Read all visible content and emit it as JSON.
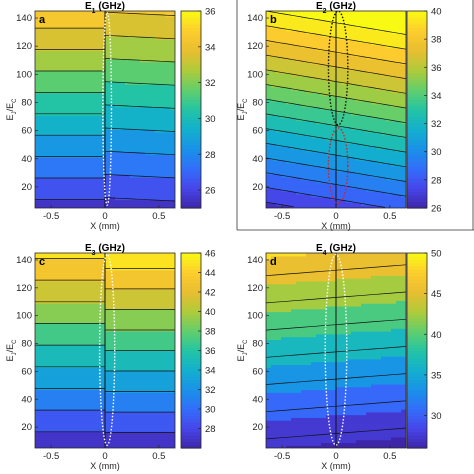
{
  "figure": {
    "panel_titles": [
      "E1 (GHz)",
      "E2 (GHz)",
      "E3 (GHz)",
      "E4 (GHz)"
    ],
    "xlabel": "X (mm)",
    "ylabel": "Ej/Ec"
  },
  "chart_data": [
    {
      "type": "heatmap",
      "panel": "a",
      "title": {
        "base": "E",
        "sub": "1",
        "unit": " (GHz)"
      },
      "xlabel": "X (mm)",
      "ylabel": {
        "base": "E",
        "sub1": "J",
        "mid": "/E",
        "sub2": "C"
      },
      "xlim": [
        -0.65,
        0.65
      ],
      "ylim": [
        5,
        145
      ],
      "xticks": [
        -0.5,
        0,
        0.5
      ],
      "yticks": [
        20,
        40,
        60,
        80,
        100,
        120,
        140
      ],
      "colorbar": {
        "min": 25,
        "max": 36,
        "ticks": [
          26,
          28,
          30,
          32,
          34,
          36
        ]
      },
      "left_region": {
        "y": [
          5,
          145
        ],
        "values": [
          25.6,
          34.8
        ],
        "tilt": 0
      },
      "right_region": {
        "y": [
          5,
          145
        ],
        "values": [
          25.4,
          33.9
        ],
        "tilt": 0.3
      },
      "contour_interval": 1,
      "boundary": {
        "color": "white",
        "style": "dotted",
        "x_center": 0.02,
        "width": 0.04
      }
    },
    {
      "type": "heatmap",
      "panel": "b",
      "title": {
        "base": "E",
        "sub": "2",
        "unit": " (GHz)"
      },
      "xlabel": "X (mm)",
      "ylabel": {
        "base": "E",
        "sub1": "J",
        "mid": "/E",
        "sub2": "C"
      },
      "xlim": [
        -0.65,
        0.65
      ],
      "ylim": [
        5,
        145
      ],
      "xticks": [
        -0.5,
        0,
        0.5
      ],
      "yticks": [
        20,
        40,
        60,
        80,
        100,
        120,
        140
      ],
      "colorbar": {
        "min": 26,
        "max": 40,
        "ticks": [
          26,
          28,
          30,
          32,
          34,
          36,
          38,
          40
        ]
      },
      "left_region": {
        "y": [
          5,
          145
        ],
        "values": [
          26.6,
          40
        ],
        "tilt": 1.6
      },
      "right_region": {
        "y": [
          5,
          145
        ],
        "values": [
          26.6,
          40
        ],
        "tilt": 1.6
      },
      "contour_interval": 1,
      "boundaries": [
        {
          "color": "black",
          "style": "dotted",
          "x_center": 0.02,
          "y": [
            64,
            145
          ],
          "width": 0.09
        },
        {
          "color": "red",
          "style": "dotted",
          "x_center": 0.02,
          "y": [
            8,
            62
          ],
          "width": 0.09
        }
      ]
    },
    {
      "type": "heatmap",
      "panel": "c",
      "title": {
        "base": "E",
        "sub": "3",
        "unit": " (GHz)"
      },
      "xlabel": "X (mm)",
      "ylabel": {
        "base": "E",
        "sub1": "J",
        "mid": "/E",
        "sub2": "C"
      },
      "xlim": [
        -0.65,
        0.65
      ],
      "ylim": [
        5,
        145
      ],
      "xticks": [
        -0.5,
        0,
        0.5
      ],
      "yticks": [
        20,
        40,
        60,
        80,
        100,
        120,
        140
      ],
      "colorbar": {
        "min": 26,
        "max": 46,
        "ticks": [
          28,
          30,
          32,
          34,
          36,
          38,
          40,
          42,
          44,
          46
        ]
      },
      "left_region": {
        "y": [
          5,
          145
        ],
        "values": [
          26.5,
          44.5
        ],
        "tilt": 0
      },
      "right_region": {
        "y": [
          5,
          145
        ],
        "values": [
          26.5,
          45.5
        ],
        "tilt": 0
      },
      "contour_interval": 2,
      "boundary": {
        "color": "white",
        "style": "dotted",
        "x_center": 0.02,
        "width": 0.07
      }
    },
    {
      "type": "heatmap",
      "panel": "d",
      "title": {
        "base": "E",
        "sub": "4",
        "unit": " (GHz)"
      },
      "xlabel": "X (mm)",
      "ylabel": {
        "base": "E",
        "sub1": "J",
        "mid": "/E",
        "sub2": "C"
      },
      "xlim": [
        -0.65,
        0.65
      ],
      "ylim": [
        5,
        145
      ],
      "xticks": [
        -0.5,
        0,
        0.5
      ],
      "yticks": [
        20,
        40,
        60,
        80,
        100,
        120,
        140
      ],
      "colorbar": {
        "min": 26,
        "max": 50,
        "ticks": [
          30,
          35,
          40,
          45,
          50
        ]
      },
      "left_region": {
        "y": [
          5,
          145
        ],
        "values": [
          26,
          47.5
        ],
        "tilt": -1.2
      },
      "right_region": {
        "y": [
          5,
          145
        ],
        "values": [
          26,
          47.5
        ],
        "tilt": -1.2
      },
      "contour_interval": 3,
      "boundary": {
        "color": "white",
        "style": "dotted",
        "x_center": 0.0,
        "width": 0.1
      }
    }
  ]
}
